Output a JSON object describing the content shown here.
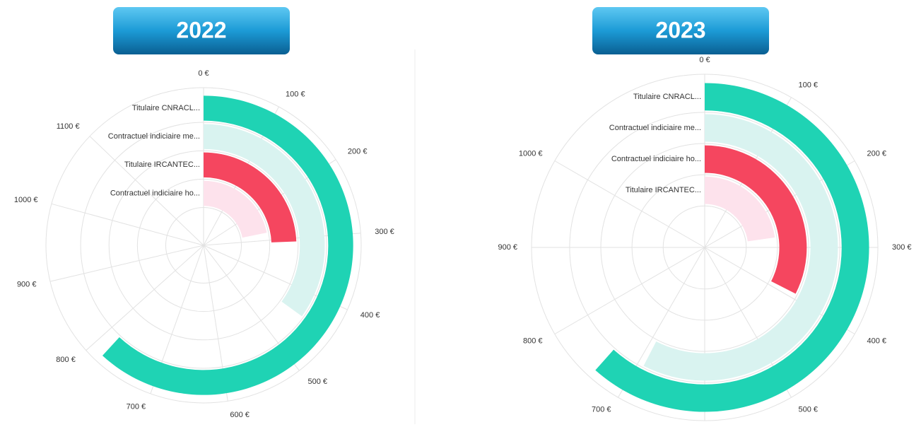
{
  "chart_data": [
    {
      "type": "radial_bar",
      "title": "2022",
      "categories": [
        "Titulaire CNRACL...",
        "Contractuel indiciaire me...",
        "Titulaire IRCANTEC...",
        "Contractuel indiciaire ho..."
      ],
      "values": [
        780,
        441,
        307,
        276
      ],
      "colors": [
        "#1fd3b4",
        "#d9f3f0",
        "#f5465f",
        "#fde2ec"
      ],
      "xlim": [
        0,
        1262
      ],
      "xticks": [
        {
          "value": 0,
          "label": "0 €"
        },
        {
          "value": 100,
          "label": "100 €"
        },
        {
          "value": 200,
          "label": "200 €"
        },
        {
          "value": 300,
          "label": "300 €"
        },
        {
          "value": 400,
          "label": "400 €"
        },
        {
          "value": 500,
          "label": "500 €"
        },
        {
          "value": 600,
          "label": "600 €"
        },
        {
          "value": 700,
          "label": "700 €"
        },
        {
          "value": 800,
          "label": "800 €"
        },
        {
          "value": 900,
          "label": "900 €"
        },
        {
          "value": 1000,
          "label": "1000 €"
        },
        {
          "value": 1100,
          "label": "1100 €"
        }
      ]
    },
    {
      "type": "radial_bar",
      "title": "2023",
      "categories": [
        "Titulaire CNRACL...",
        "Contractuel indiciaire me...",
        "Contractuel indiciaire ho...",
        "Titulaire IRCANTEC..."
      ],
      "values": [
        739,
        691,
        390,
        273
      ],
      "colors": [
        "#1fd3b4",
        "#d9f3f0",
        "#f5465f",
        "#fde2ec"
      ],
      "xlim": [
        0,
        1200
      ],
      "xticks": [
        {
          "value": 0,
          "label": "0 €"
        },
        {
          "value": 100,
          "label": "100 €"
        },
        {
          "value": 200,
          "label": "200 €"
        },
        {
          "value": 300,
          "label": "300 €"
        },
        {
          "value": 400,
          "label": "400 €"
        },
        {
          "value": 500,
          "label": "500 €"
        },
        {
          "value": 600,
          "label": "600 €"
        },
        {
          "value": 700,
          "label": "700 €"
        },
        {
          "value": 800,
          "label": "800 €"
        },
        {
          "value": 900,
          "label": "900 €"
        },
        {
          "value": 1000,
          "label": "1000 €"
        }
      ]
    }
  ]
}
